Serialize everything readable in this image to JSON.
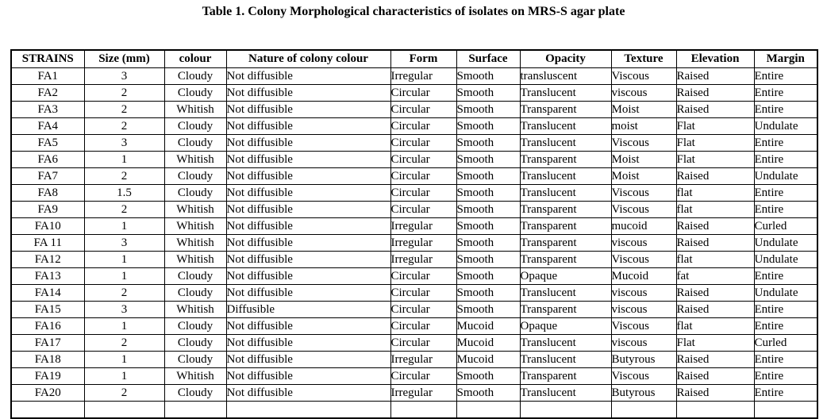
{
  "title": "Table 1. Colony Morphological characteristics of isolates on MRS-S agar plate",
  "table": {
    "columns": [
      "STRAINS",
      "Size (mm)",
      "colour",
      "Nature of colony colour",
      "Form",
      "Surface",
      "Opacity",
      "Texture",
      "Elevation",
      "Margin"
    ],
    "rows": [
      [
        "FA1",
        "3",
        "Cloudy",
        "Not diffusible",
        "Irregular",
        "Smooth",
        "transluscent",
        "Viscous",
        "Raised",
        "Entire"
      ],
      [
        "FA2",
        "2",
        "Cloudy",
        "Not diffusible",
        "Circular",
        "Smooth",
        "Translucent",
        "viscous",
        "Raised",
        "Entire"
      ],
      [
        "FA3",
        "2",
        "Whitish",
        "Not diffusible",
        "Circular",
        "Smooth",
        "Transparent",
        "Moist",
        "Raised",
        "Entire"
      ],
      [
        "FA4",
        "2",
        "Cloudy",
        "Not diffusible",
        "Circular",
        "Smooth",
        "Translucent",
        "moist",
        "Flat",
        "Undulate"
      ],
      [
        "FA5",
        "3",
        "Cloudy",
        "Not diffusible",
        "Circular",
        "Smooth",
        "Translucent",
        "Viscous",
        "Flat",
        "Entire"
      ],
      [
        "FA6",
        "1",
        "Whitish",
        "Not diffusible",
        "Circular",
        "Smooth",
        "Transparent",
        "Moist",
        "Flat",
        "Entire"
      ],
      [
        "FA7",
        "2",
        "Cloudy",
        "Not diffusible",
        "Circular",
        "Smooth",
        "Translucent",
        "Moist",
        "Raised",
        "Undulate"
      ],
      [
        "FA8",
        "1.5",
        "Cloudy",
        "Not diffusible",
        "Circular",
        "Smooth",
        "Translucent",
        "Viscous",
        "flat",
        "Entire"
      ],
      [
        "FA9",
        "2",
        "Whitish",
        "Not diffusible",
        "Circular",
        "Smooth",
        "Transparent",
        "Viscous",
        "flat",
        "Entire"
      ],
      [
        "FA10",
        "1",
        "Whitish",
        "Not diffusible",
        "Irregular",
        "Smooth",
        "Transparent",
        "mucoid",
        "Raised",
        "Curled"
      ],
      [
        "FA 11",
        "3",
        "Whitish",
        "Not diffusible",
        "Irregular",
        "Smooth",
        "Transparent",
        "viscous",
        "Raised",
        "Undulate"
      ],
      [
        "FA12",
        "1",
        "Whitish",
        "Not diffusible",
        "Irregular",
        "Smooth",
        "Transparent",
        "Viscous",
        "flat",
        "Undulate"
      ],
      [
        "FA13",
        "1",
        "Cloudy",
        "Not diffusible",
        "Circular",
        "Smooth",
        "Opaque",
        "Mucoid",
        "fat",
        "Entire"
      ],
      [
        "FA14",
        "2",
        "Cloudy",
        "Not diffusible",
        "Circular",
        "Smooth",
        "Translucent",
        "viscous",
        "Raised",
        "Undulate"
      ],
      [
        "FA15",
        "3",
        "Whitish",
        "Diffusible",
        "Circular",
        "Smooth",
        "Transparent",
        "viscous",
        "Raised",
        "Entire"
      ],
      [
        "FA16",
        "1",
        "Cloudy",
        "Not diffusible",
        "Circular",
        "Mucoid",
        "Opaque",
        "Viscous",
        "flat",
        "Entire"
      ],
      [
        "FA17",
        "2",
        "Cloudy",
        "Not diffusible",
        "Circular",
        "Mucoid",
        "Translucent",
        "viscous",
        "Flat",
        "Curled"
      ],
      [
        "FA18",
        "1",
        "Cloudy",
        "Not diffusible",
        "Irregular",
        "Mucoid",
        "Translucent",
        "Butyrous",
        "Raised",
        "Entire"
      ],
      [
        "FA19",
        "1",
        "Whitish",
        "Not diffusible",
        "Circular",
        "Smooth",
        "Transparent",
        "Viscous",
        "Raised",
        "Entire"
      ],
      [
        "FA20",
        "2",
        "Cloudy",
        "Not diffusible",
        "Irregular",
        "Smooth",
        "Translucent",
        "Butyrous",
        "Raised",
        "Entire"
      ]
    ]
  }
}
